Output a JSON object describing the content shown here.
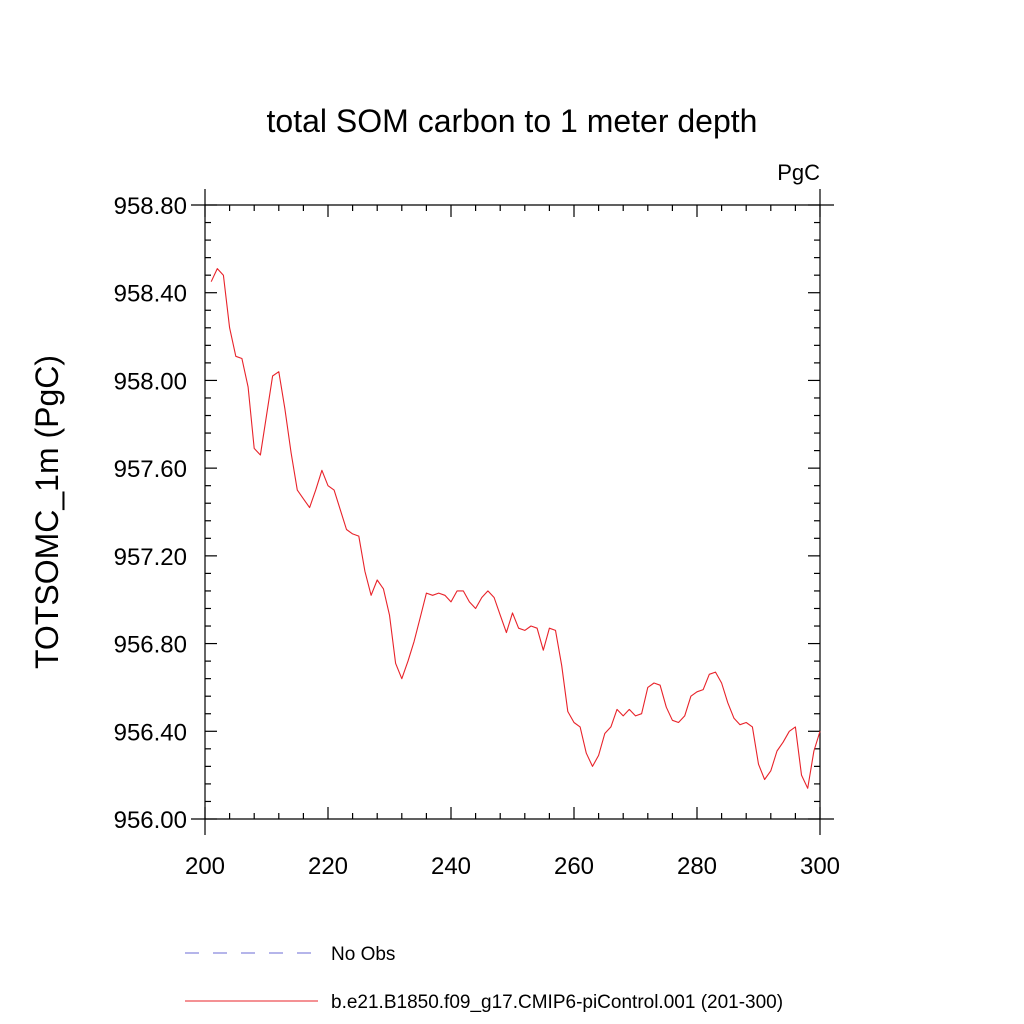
{
  "chart_data": {
    "type": "line",
    "title": "total SOM carbon to 1 meter depth",
    "units": "PgC",
    "xlabel": "",
    "ylabel": "TOTSOMC_1m  (PgC)",
    "xlim": [
      200,
      300
    ],
    "ylim": [
      956.0,
      958.8
    ],
    "xticks": [
      {
        "value": 200,
        "label": "200"
      },
      {
        "value": 220,
        "label": "220"
      },
      {
        "value": 240,
        "label": "240"
      },
      {
        "value": 260,
        "label": "260"
      },
      {
        "value": 280,
        "label": "280"
      },
      {
        "value": 300,
        "label": "300"
      }
    ],
    "yticks": [
      {
        "value": 956.0,
        "label": "956.00"
      },
      {
        "value": 956.4,
        "label": "956.40"
      },
      {
        "value": 956.8,
        "label": "956.80"
      },
      {
        "value": 957.2,
        "label": "957.20"
      },
      {
        "value": 957.6,
        "label": "957.60"
      },
      {
        "value": 958.0,
        "label": "958.00"
      },
      {
        "value": 958.4,
        "label": "958.40"
      },
      {
        "value": 958.8,
        "label": "958.80"
      }
    ],
    "legend": [
      {
        "label": "No Obs",
        "color": "#6b6bd6",
        "style": "dashed"
      },
      {
        "label": "b.e21.B1850.f09_g17.CMIP6-piControl.001 (201-300)",
        "color": "#e8232a",
        "style": "solid"
      }
    ],
    "series": [
      {
        "name": "b.e21.B1850.f09_g17.CMIP6-piControl.001 (201-300)",
        "color": "#e8232a",
        "x": [
          201,
          202,
          203,
          204,
          205,
          206,
          207,
          208,
          209,
          210,
          211,
          212,
          213,
          214,
          215,
          216,
          217,
          218,
          219,
          220,
          221,
          222,
          223,
          224,
          225,
          226,
          227,
          228,
          229,
          230,
          231,
          232,
          233,
          234,
          235,
          236,
          237,
          238,
          239,
          240,
          241,
          242,
          243,
          244,
          245,
          246,
          247,
          248,
          249,
          250,
          251,
          252,
          253,
          254,
          255,
          256,
          257,
          258,
          259,
          260,
          261,
          262,
          263,
          264,
          265,
          266,
          267,
          268,
          269,
          270,
          271,
          272,
          273,
          274,
          275,
          276,
          277,
          278,
          279,
          280,
          281,
          282,
          283,
          284,
          285,
          286,
          287,
          288,
          289,
          290,
          291,
          292,
          293,
          294,
          295,
          296,
          297,
          298,
          299,
          300
        ],
        "values": [
          958.45,
          958.51,
          958.48,
          958.24,
          958.11,
          958.1,
          957.97,
          957.69,
          957.66,
          957.84,
          958.02,
          958.04,
          957.87,
          957.67,
          957.5,
          957.46,
          957.42,
          957.5,
          957.59,
          957.52,
          957.5,
          957.41,
          957.32,
          957.3,
          957.29,
          957.13,
          957.02,
          957.09,
          957.05,
          956.93,
          956.71,
          956.64,
          956.72,
          956.81,
          956.92,
          957.03,
          957.02,
          957.03,
          957.02,
          956.99,
          957.04,
          957.04,
          956.99,
          956.96,
          957.01,
          957.04,
          957.01,
          956.93,
          956.85,
          956.94,
          956.87,
          956.86,
          956.88,
          956.87,
          956.77,
          956.87,
          956.86,
          956.7,
          956.49,
          956.44,
          956.42,
          956.3,
          956.24,
          956.29,
          956.39,
          956.42,
          956.5,
          956.47,
          956.5,
          956.47,
          956.48,
          956.6,
          956.62,
          956.61,
          956.51,
          956.45,
          956.44,
          956.47,
          956.56,
          956.58,
          956.59,
          956.66,
          956.67,
          956.62,
          956.53,
          956.46,
          956.43,
          956.44,
          956.42,
          956.25,
          956.18,
          956.22,
          956.31,
          956.35,
          956.4,
          956.42,
          956.2,
          956.14,
          956.31,
          956.4
        ]
      }
    ]
  }
}
